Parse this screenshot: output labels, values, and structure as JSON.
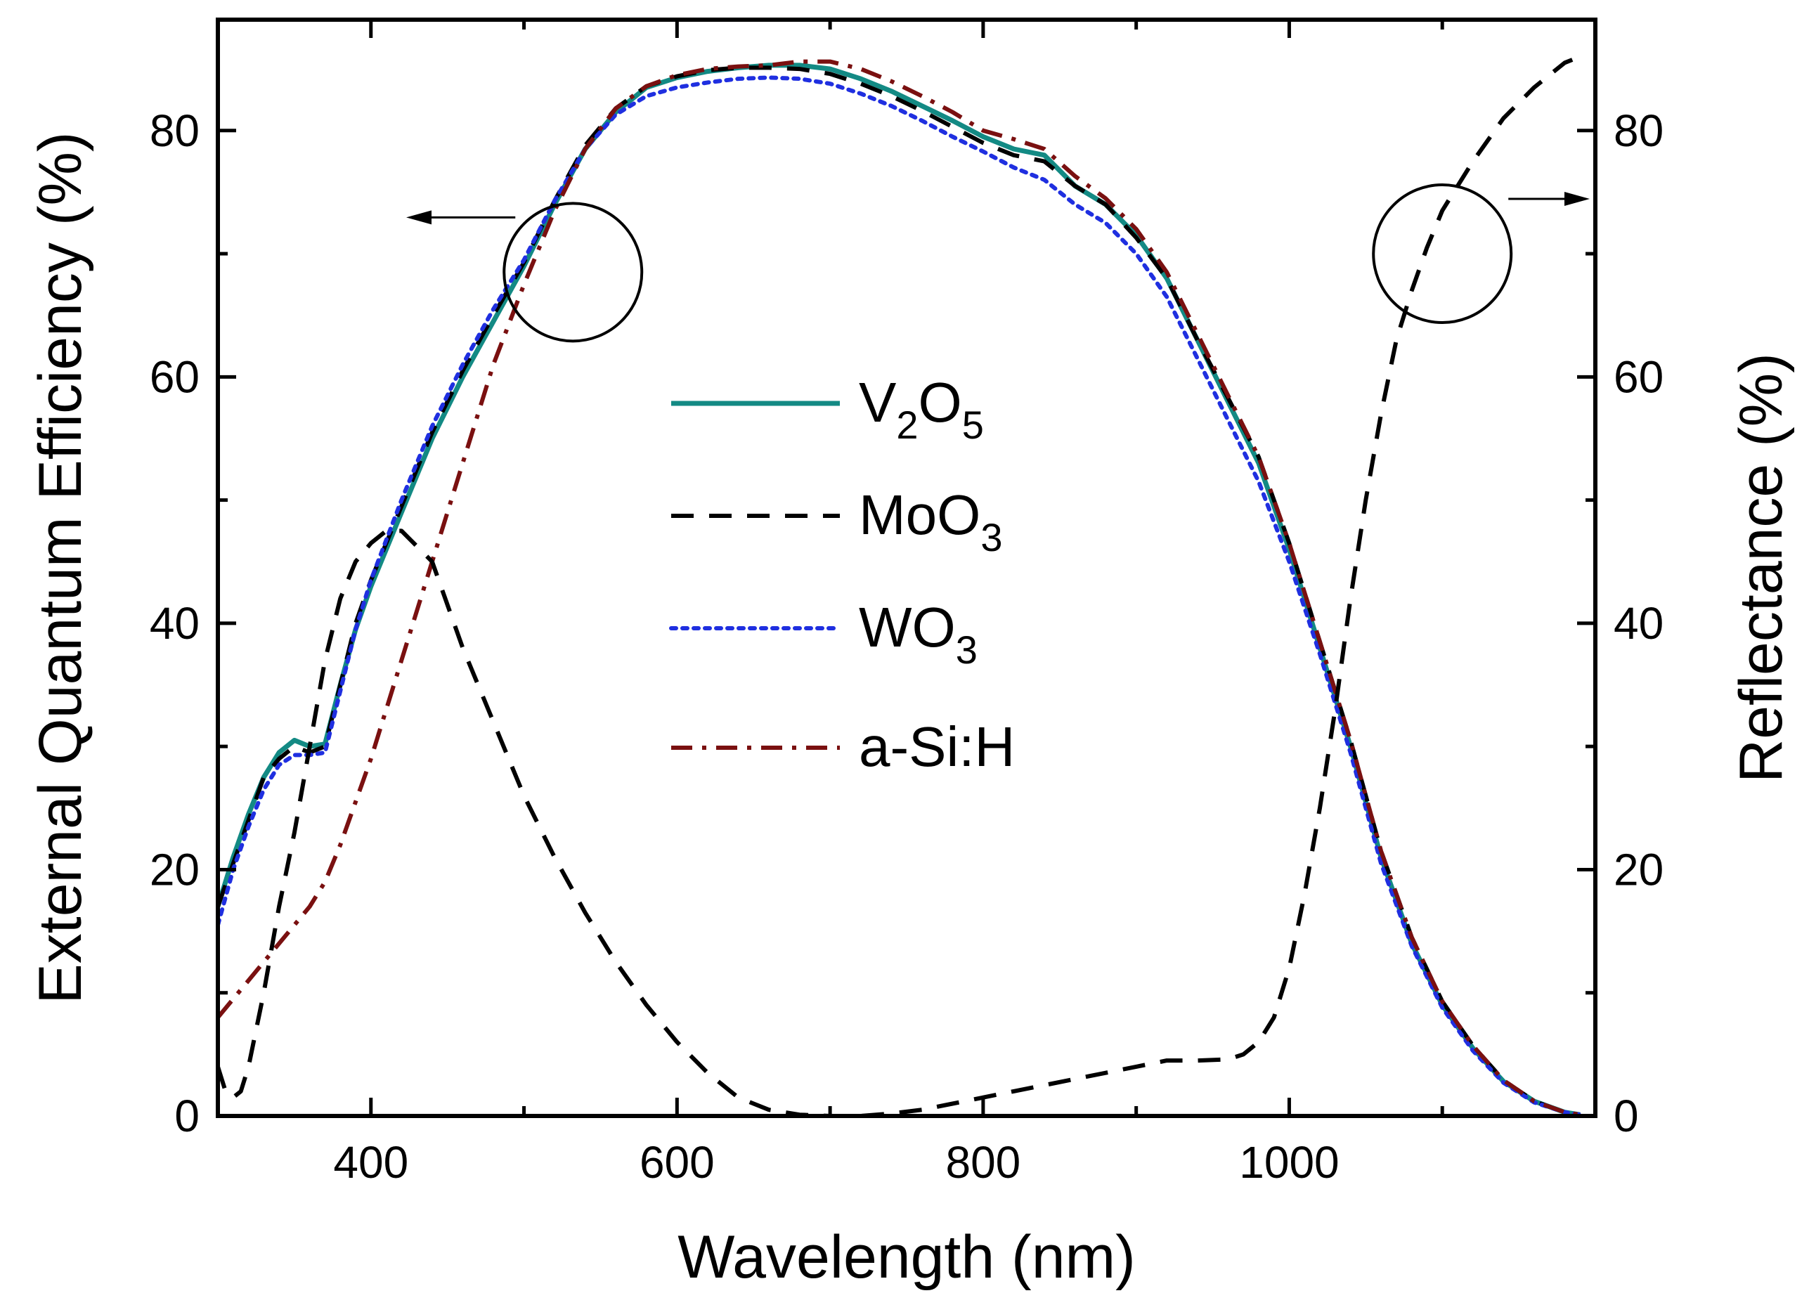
{
  "chart_data": {
    "type": "line",
    "xlabel": "Wavelength (nm)",
    "ylabel": "External Quantum Efficiency (%)",
    "y2label": "Reflectance (%)",
    "xlim": [
      300,
      1200
    ],
    "ylim": [
      0,
      89
    ],
    "y2lim": [
      0,
      89
    ],
    "x_ticks": [
      400,
      600,
      800,
      1000
    ],
    "y_ticks": [
      0,
      20,
      40,
      60,
      80
    ],
    "y2_ticks": [
      0,
      20,
      40,
      60,
      80
    ],
    "legend_position": "center",
    "series": [
      {
        "name": "V2O5",
        "label_base": "V",
        "label_sub1": "2",
        "label_mid": "O",
        "label_sub2": "5",
        "axis": "left",
        "color": "#138a84",
        "style": "solid",
        "x": [
          300,
          310,
          320,
          330,
          340,
          350,
          360,
          370,
          380,
          390,
          400,
          420,
          440,
          460,
          480,
          500,
          520,
          540,
          560,
          580,
          600,
          620,
          640,
          660,
          680,
          700,
          720,
          740,
          760,
          780,
          800,
          820,
          840,
          860,
          880,
          900,
          920,
          940,
          960,
          980,
          1000,
          1020,
          1040,
          1060,
          1080,
          1100,
          1120,
          1140,
          1160,
          1180,
          1190
        ],
        "y": [
          17,
          21,
          24.5,
          27.5,
          29.5,
          30.5,
          30,
          30.2,
          35,
          39.5,
          43,
          49,
          55,
          60,
          64.5,
          69,
          74,
          78.5,
          81.5,
          83.5,
          84.3,
          84.8,
          85.1,
          85.3,
          85.3,
          85,
          84.2,
          83.2,
          82,
          80.8,
          79.5,
          78.5,
          78,
          75.5,
          74,
          71.5,
          68,
          63,
          58,
          53,
          46,
          38,
          30,
          21,
          14,
          9,
          5.5,
          2.8,
          1.2,
          0.3,
          0.1
        ]
      },
      {
        "name": "MoO3",
        "label_base": "MoO",
        "label_sub1": "3",
        "axis": "left",
        "color": "#000000",
        "style": "dashed",
        "x": [
          300,
          310,
          320,
          330,
          340,
          350,
          360,
          370,
          380,
          390,
          400,
          420,
          440,
          460,
          480,
          500,
          520,
          540,
          560,
          580,
          600,
          620,
          640,
          660,
          680,
          700,
          720,
          740,
          760,
          780,
          800,
          820,
          840,
          860,
          880,
          900,
          920,
          940,
          960,
          980,
          1000,
          1020,
          1040,
          1060,
          1080,
          1100,
          1120,
          1140,
          1160,
          1180,
          1190
        ],
        "y": [
          17,
          20.5,
          24,
          27.5,
          29,
          30,
          29.5,
          30,
          35,
          40,
          43.5,
          49.5,
          55.5,
          60.5,
          65,
          69.3,
          74.3,
          78.8,
          81.8,
          83.6,
          84.4,
          84.9,
          85.1,
          85.1,
          85,
          84.6,
          83.8,
          82.8,
          81.6,
          80.3,
          79,
          78,
          77.5,
          75.5,
          74,
          71.3,
          68,
          63,
          58.3,
          53.5,
          46.5,
          38.5,
          30.5,
          21.5,
          14.5,
          9.3,
          5.7,
          2.9,
          1.2,
          0.3,
          0.1
        ]
      },
      {
        "name": "WO3",
        "label_base": "WO",
        "label_sub1": "3",
        "axis": "left",
        "color": "#1f2fe0",
        "style": "dotted",
        "x": [
          300,
          310,
          320,
          330,
          340,
          350,
          360,
          370,
          380,
          390,
          400,
          420,
          440,
          460,
          480,
          500,
          520,
          540,
          560,
          580,
          600,
          620,
          640,
          660,
          680,
          700,
          720,
          740,
          760,
          780,
          800,
          820,
          840,
          860,
          880,
          900,
          920,
          940,
          960,
          980,
          1000,
          1020,
          1040,
          1060,
          1080,
          1100,
          1120,
          1140,
          1160,
          1180,
          1190
        ],
        "y": [
          15.5,
          20,
          23.5,
          26.5,
          28.5,
          29.3,
          29.3,
          29.5,
          34.5,
          39.5,
          43.5,
          50,
          56,
          61,
          65.5,
          69.5,
          74.3,
          78.5,
          81.3,
          82.8,
          83.5,
          83.9,
          84.2,
          84.3,
          84.2,
          83.8,
          83,
          82,
          80.8,
          79.5,
          78.3,
          77,
          76,
          74,
          72.5,
          70,
          66.5,
          61.5,
          56.5,
          51.5,
          45,
          37.5,
          29.5,
          20.5,
          13.8,
          8.8,
          5.3,
          2.7,
          1.1,
          0.3,
          0.1
        ]
      },
      {
        "name": "a-Si:H",
        "label_base": "a-Si:H",
        "axis": "left",
        "color": "#7a1010",
        "style": "dashdot",
        "x": [
          300,
          310,
          320,
          330,
          340,
          350,
          360,
          370,
          380,
          390,
          400,
          420,
          440,
          460,
          480,
          500,
          520,
          540,
          560,
          580,
          600,
          620,
          640,
          660,
          680,
          700,
          720,
          740,
          760,
          780,
          800,
          820,
          840,
          860,
          880,
          900,
          920,
          940,
          960,
          980,
          1000,
          1020,
          1040,
          1060,
          1080,
          1100,
          1120,
          1140,
          1160,
          1180,
          1190
        ],
        "y": [
          8,
          9.5,
          11,
          12.5,
          14,
          15.5,
          17,
          19,
          22,
          25.5,
          29,
          37,
          45,
          53,
          61,
          67.5,
          73.5,
          78.5,
          81.8,
          83.6,
          84.5,
          85,
          85.2,
          85.3,
          85.6,
          85.6,
          85,
          84,
          82.8,
          81.5,
          80,
          79.3,
          78.5,
          76.3,
          74.5,
          72,
          68.5,
          63.5,
          58.5,
          53.5,
          46.5,
          38.5,
          30.5,
          21.5,
          14.5,
          9.3,
          5.7,
          2.9,
          1.2,
          0.3,
          0.1
        ]
      },
      {
        "name": "Reflectance",
        "axis": "right",
        "color": "#000000",
        "style": "dashed",
        "x": [
          300,
          305,
          310,
          315,
          320,
          330,
          340,
          350,
          360,
          370,
          380,
          390,
          400,
          410,
          420,
          440,
          460,
          480,
          500,
          520,
          540,
          560,
          580,
          600,
          620,
          640,
          660,
          680,
          700,
          720,
          740,
          760,
          780,
          800,
          820,
          840,
          860,
          880,
          900,
          920,
          940,
          960,
          970,
          980,
          990,
          1000,
          1010,
          1020,
          1030,
          1040,
          1050,
          1060,
          1070,
          1080,
          1090,
          1100,
          1120,
          1140,
          1160,
          1180,
          1190
        ],
        "y": [
          4,
          2,
          1.5,
          2,
          4,
          10,
          17,
          23,
          30,
          37,
          42,
          45,
          46.5,
          47.5,
          47.5,
          45,
          38,
          32,
          26,
          21,
          16.5,
          12.5,
          9,
          6,
          3.5,
          1.5,
          0.5,
          0.1,
          0,
          0,
          0.2,
          0.5,
          1,
          1.5,
          2,
          2.5,
          3,
          3.5,
          4,
          4.5,
          4.5,
          4.6,
          5,
          6,
          8,
          12,
          18,
          25,
          33,
          42,
          50,
          57,
          63,
          67,
          70.5,
          73.5,
          77.5,
          81,
          83.5,
          85.5,
          86
        ]
      }
    ],
    "annotations": [
      {
        "type": "circle",
        "cx_data": 532,
        "cy_data": 68.5,
        "points_to": "left axis"
      },
      {
        "type": "circle",
        "cx_data": 1100,
        "cy_data": 70,
        "points_to": "right axis"
      }
    ]
  }
}
